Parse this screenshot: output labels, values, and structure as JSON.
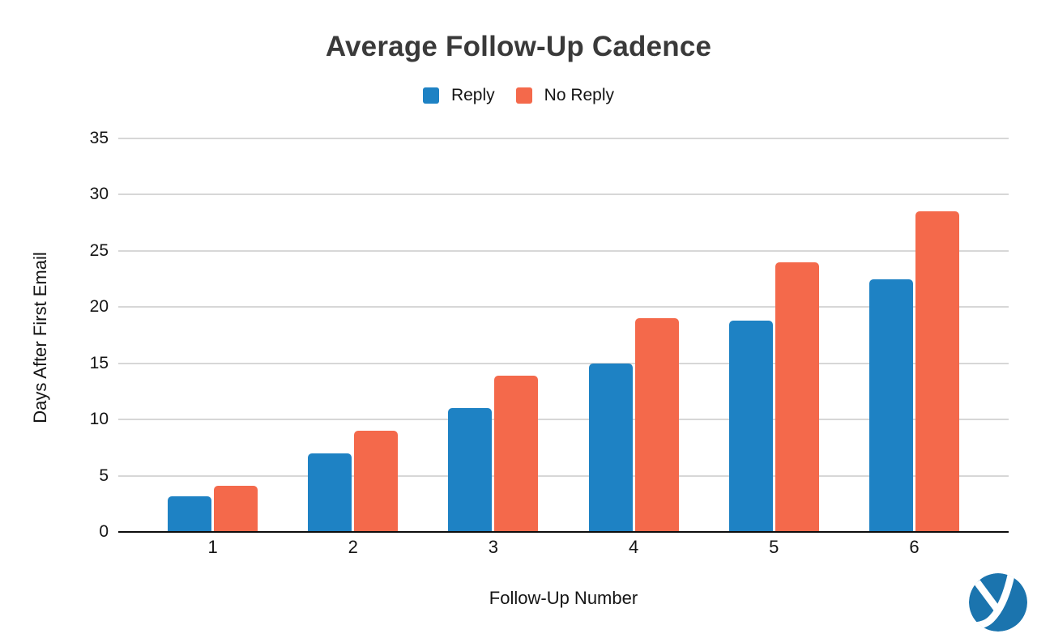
{
  "chart_data": {
    "type": "bar",
    "title": "Average Follow-Up Cadence",
    "categories": [
      "1",
      "2",
      "3",
      "4",
      "5",
      "6"
    ],
    "series": [
      {
        "name": "Reply",
        "color": "#1E82C4",
        "values": [
          3.2,
          7.0,
          11.0,
          15.0,
          18.8,
          22.5
        ]
      },
      {
        "name": "No Reply",
        "color": "#F4694B",
        "values": [
          4.1,
          9.0,
          13.9,
          19.0,
          24.0,
          28.5
        ]
      }
    ],
    "xlabel": "Follow-Up Number",
    "ylabel": "Days After First Email",
    "ylim": [
      0,
      35
    ],
    "ytick_step": 5,
    "grid": true,
    "legend_position": "top",
    "colors": {
      "grid": "#d7d7d7",
      "axis": "#0d0d0d",
      "title": "#3a3a3a",
      "tick_text": "#141414",
      "background": "#ffffff"
    }
  },
  "logo": {
    "name": "yesware-logo",
    "circle_color": "#1B74AE",
    "glyph": "y",
    "glyph_color": "#ffffff"
  }
}
